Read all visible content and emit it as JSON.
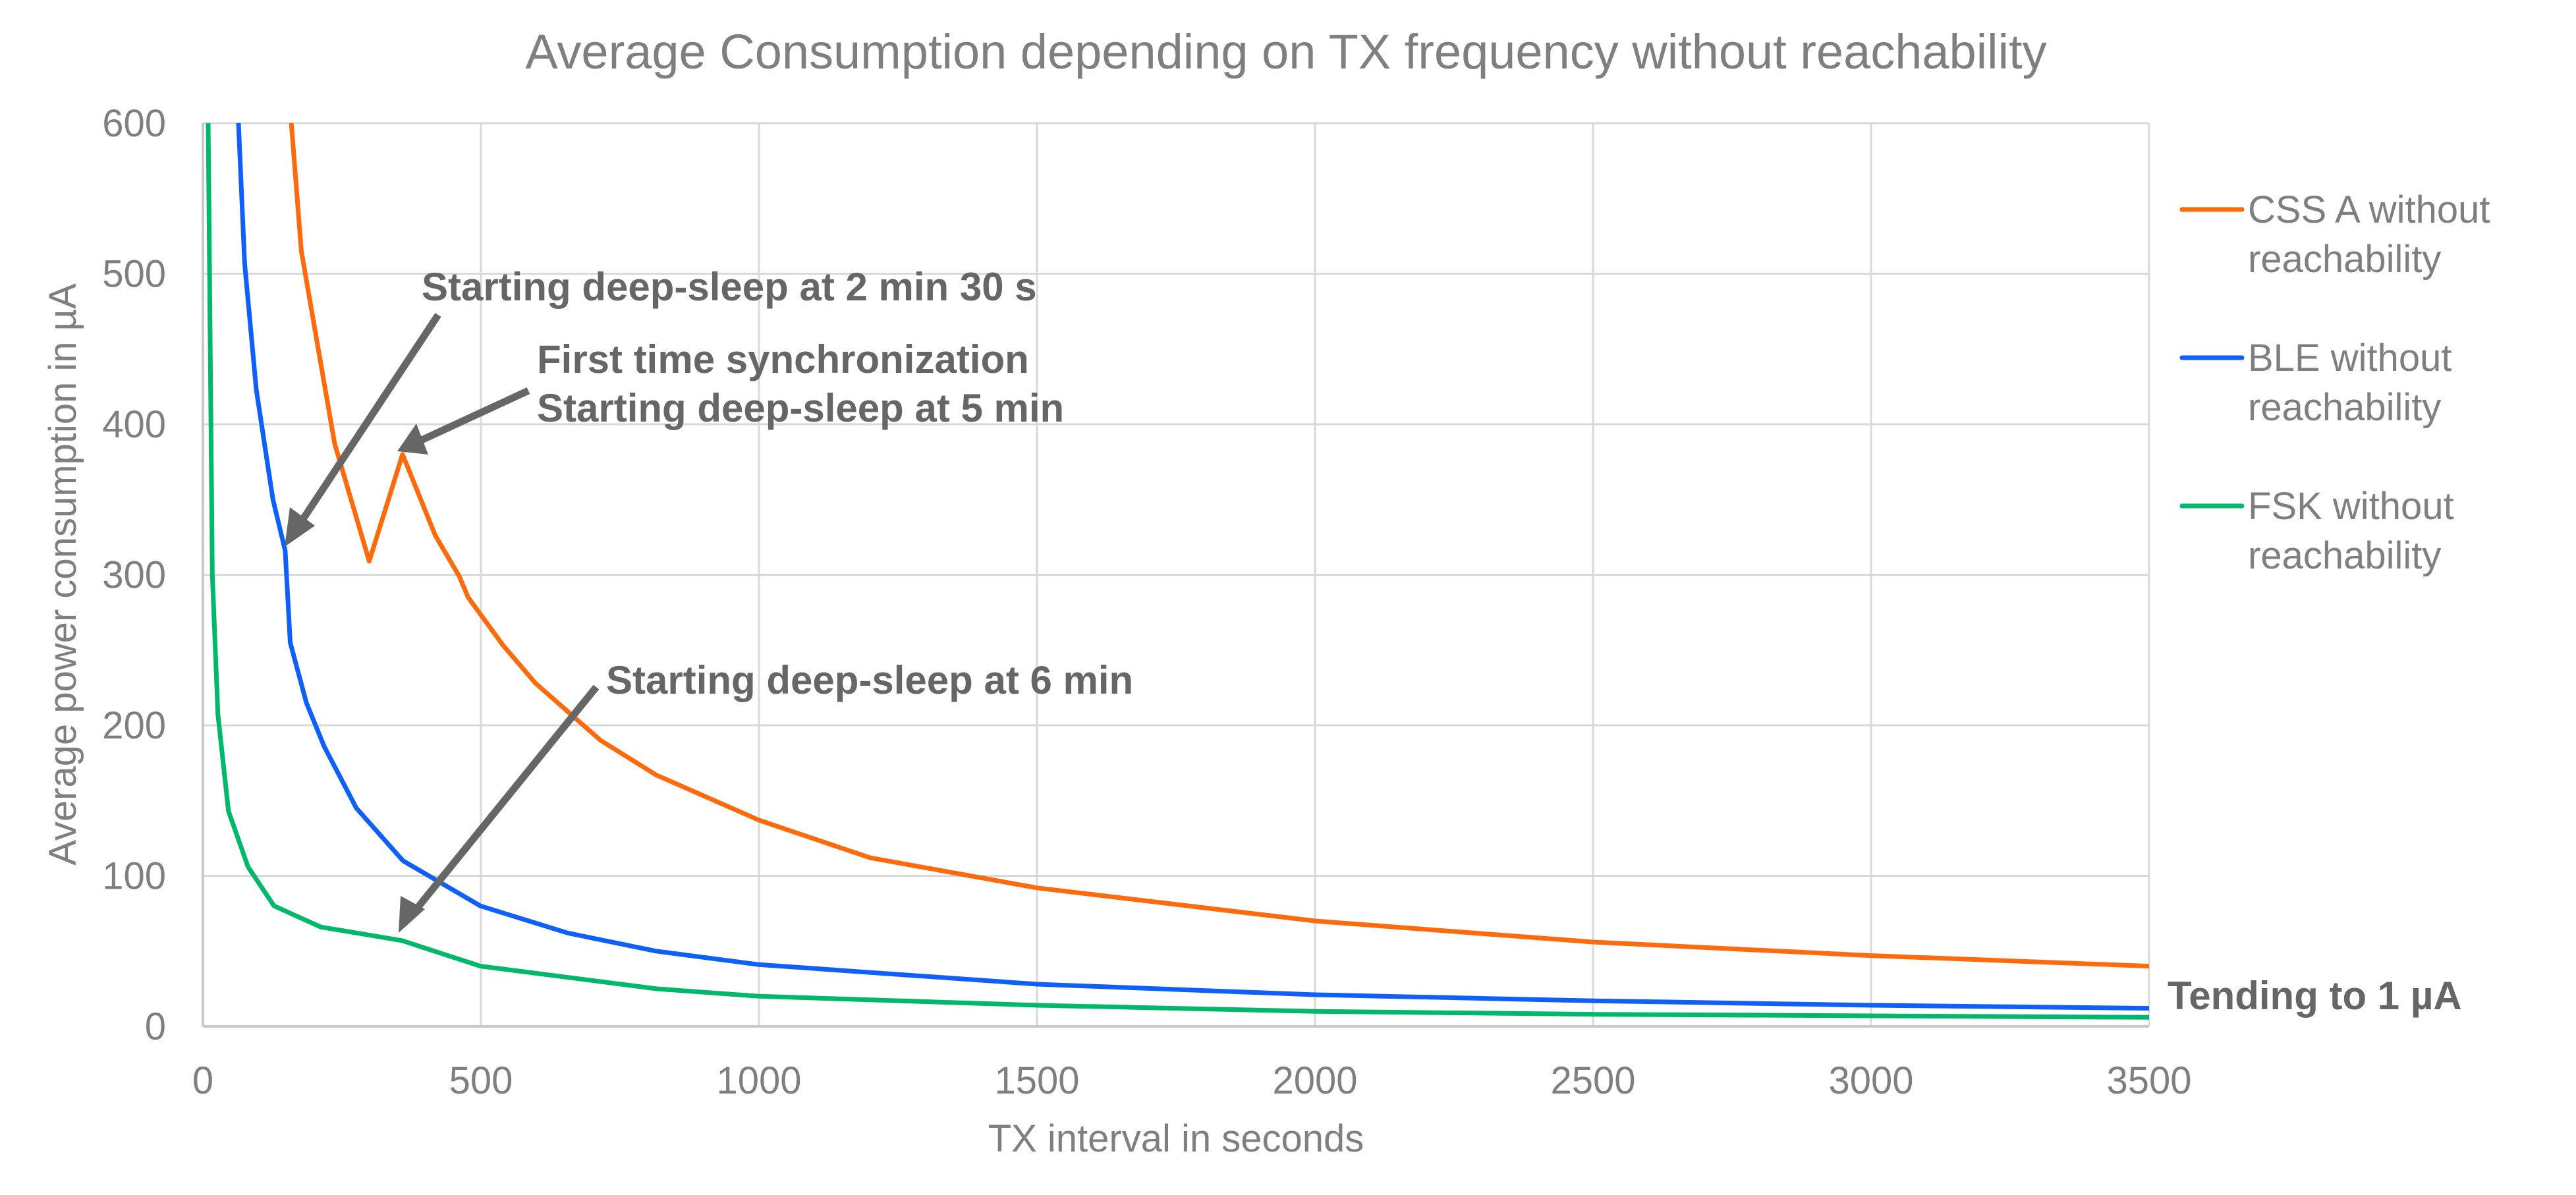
{
  "chart_data": {
    "type": "line",
    "title": "Average Consumption depending on TX frequency without reachability",
    "xlabel": "TX interval in seconds",
    "ylabel": "Average power consumption in µA",
    "xlim": [
      0,
      3500
    ],
    "ylim": [
      0,
      600
    ],
    "xticks": [
      0,
      500,
      1000,
      1500,
      2000,
      2500,
      3000,
      3500
    ],
    "yticks": [
      0,
      100,
      200,
      300,
      400,
      500,
      600
    ],
    "grid": true,
    "legend_position": "right",
    "series": [
      {
        "name": "CSS A without reachability",
        "color": "#ff6a0d",
        "x": [
          150,
          159,
          177,
          237,
          299,
          359,
          418,
          461,
          477,
          540,
          598,
          715,
          815,
          1000,
          1200,
          1500,
          2000,
          2500,
          3000,
          3500
        ],
        "y": [
          650,
          600,
          515,
          387,
          309,
          380,
          326,
          299,
          285,
          253,
          228,
          190,
          167,
          137,
          112,
          92,
          70,
          56,
          47,
          40
        ]
      },
      {
        "name": "BLE without reachability",
        "color": "#0f5ffa",
        "x": [
          60,
          64,
          75,
          96,
          126,
          148,
          157,
          186,
          218,
          276,
          360,
          499,
          656,
          815,
          1000,
          1500,
          2000,
          2500,
          3000,
          3500
        ],
        "y": [
          650,
          600,
          507,
          423,
          350,
          316,
          255,
          215,
          186,
          145,
          110,
          80,
          62,
          50,
          41,
          28,
          21,
          17,
          14,
          12
        ]
      },
      {
        "name": "FSK without reachability",
        "color": "#00b86b",
        "x": [
          8,
          9.5,
          17,
          27,
          46,
          81,
          128,
          212,
          358,
          499,
          815,
          1000,
          1500,
          2000,
          2500,
          3000,
          3500
        ],
        "y": [
          650,
          600,
          300,
          207,
          143,
          106,
          80,
          66,
          57,
          40,
          25,
          20,
          14,
          10,
          8,
          7,
          6
        ]
      }
    ],
    "annotations": [
      {
        "text": "Starting deep-sleep at 2 min 30 s",
        "arrow_to": [
          150,
          316
        ]
      },
      {
        "text": "First time synchronization",
        "arrow_to": null
      },
      {
        "text": "Starting deep-sleep at 5 min",
        "arrow_to": [
          359,
          380
        ]
      },
      {
        "text": "Starting deep-sleep at 6 min",
        "arrow_to": [
          358,
          57
        ]
      },
      {
        "text": "Tending to 1 µA",
        "arrow_to": null
      }
    ]
  }
}
